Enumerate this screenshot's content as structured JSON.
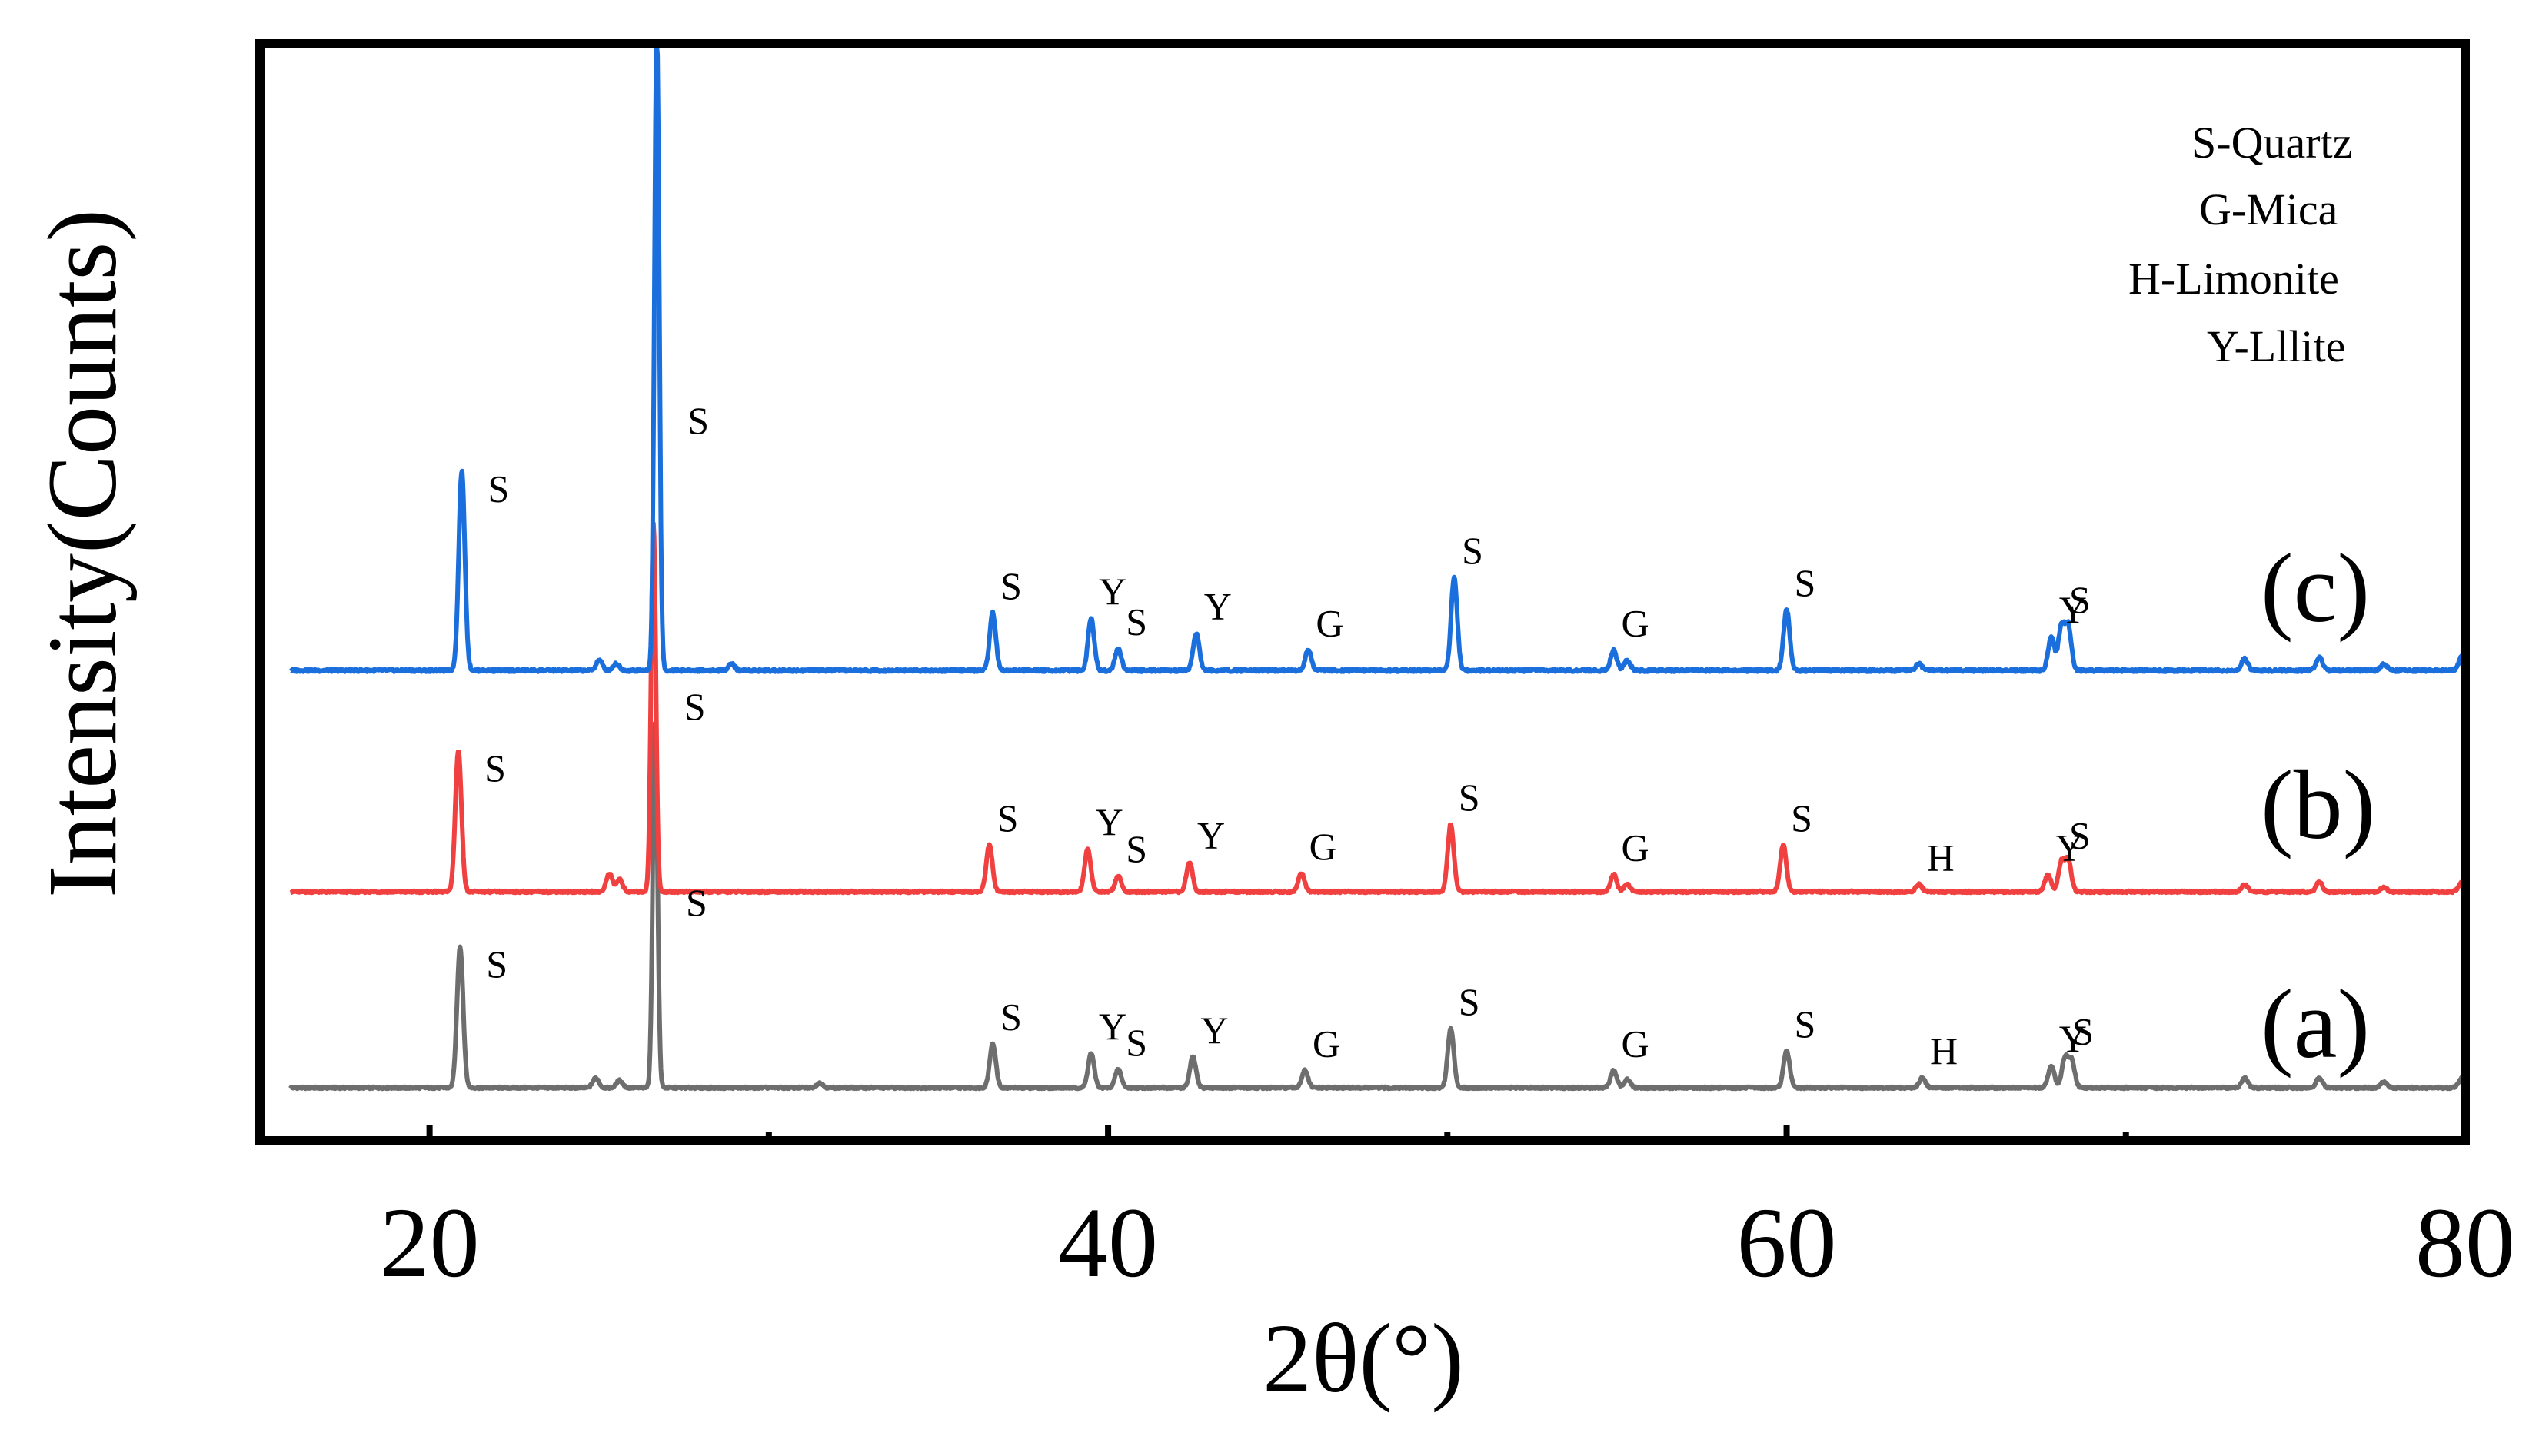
{
  "chart_data": {
    "type": "line",
    "title": "",
    "xlabel": "2θ(°)",
    "ylabel": "Intensity(Counts)",
    "xlim": [
      15,
      80
    ],
    "xticks": [
      20,
      40,
      60,
      80
    ],
    "xticks_minor": [
      30,
      50,
      70
    ],
    "yticks": [],
    "grid": false,
    "legend": {
      "placement": "top-right",
      "entries": [
        "S-Quartz",
        "G-Mica",
        "H-Limonite",
        "Y-Lllite"
      ]
    },
    "series": [
      {
        "name": "(a)",
        "color": "#6e6e6e",
        "baseline": 0,
        "peaks": [
          {
            "x": 20.9,
            "y": 115,
            "label": "S"
          },
          {
            "x": 24.9,
            "y": 8
          },
          {
            "x": 25.6,
            "y": 6
          },
          {
            "x": 26.65,
            "y": 300,
            "label": "S"
          },
          {
            "x": 31.5,
            "y": 4
          },
          {
            "x": 36.6,
            "y": 36,
            "label": "S"
          },
          {
            "x": 39.5,
            "y": 28,
            "label": "Y"
          },
          {
            "x": 40.3,
            "y": 15,
            "label": "S"
          },
          {
            "x": 42.5,
            "y": 25,
            "label": "Y"
          },
          {
            "x": 45.8,
            "y": 14,
            "label": "G"
          },
          {
            "x": 50.1,
            "y": 48,
            "label": "S"
          },
          {
            "x": 54.9,
            "y": 14,
            "label": "G"
          },
          {
            "x": 55.3,
            "y": 7
          },
          {
            "x": 60.0,
            "y": 30,
            "label": "S"
          },
          {
            "x": 64.0,
            "y": 8,
            "label": "H"
          },
          {
            "x": 67.8,
            "y": 18,
            "label": "Y"
          },
          {
            "x": 68.2,
            "y": 24,
            "label": "S"
          },
          {
            "x": 68.4,
            "y": 22
          },
          {
            "x": 73.5,
            "y": 8
          },
          {
            "x": 75.7,
            "y": 8
          },
          {
            "x": 77.6,
            "y": 5
          },
          {
            "x": 79.9,
            "y": 8
          }
        ]
      },
      {
        "name": "(b)",
        "color": "#f04040",
        "baseline": 0,
        "peaks": [
          {
            "x": 20.85,
            "y": 115,
            "label": "S"
          },
          {
            "x": 25.3,
            "y": 15
          },
          {
            "x": 25.6,
            "y": 10
          },
          {
            "x": 26.6,
            "y": 300,
            "label": "S"
          },
          {
            "x": 36.5,
            "y": 38,
            "label": "S"
          },
          {
            "x": 39.4,
            "y": 35,
            "label": "Y"
          },
          {
            "x": 40.3,
            "y": 13,
            "label": "S"
          },
          {
            "x": 42.4,
            "y": 24,
            "label": "Y"
          },
          {
            "x": 45.7,
            "y": 15,
            "label": "G"
          },
          {
            "x": 50.1,
            "y": 55,
            "label": "S"
          },
          {
            "x": 54.9,
            "y": 14,
            "label": "G"
          },
          {
            "x": 55.3,
            "y": 6
          },
          {
            "x": 59.9,
            "y": 38,
            "label": "S"
          },
          {
            "x": 63.9,
            "y": 6,
            "label": "H"
          },
          {
            "x": 67.7,
            "y": 14,
            "label": "Y"
          },
          {
            "x": 68.1,
            "y": 24,
            "label": "S"
          },
          {
            "x": 68.3,
            "y": 25
          },
          {
            "x": 73.5,
            "y": 6
          },
          {
            "x": 75.7,
            "y": 8
          },
          {
            "x": 77.6,
            "y": 4
          },
          {
            "x": 79.9,
            "y": 8
          }
        ]
      },
      {
        "name": "(c)",
        "color": "#1a6fdc",
        "baseline": 0,
        "peaks": [
          {
            "x": 20.95,
            "y": 118,
            "label": "S"
          },
          {
            "x": 25.0,
            "y": 6
          },
          {
            "x": 25.5,
            "y": 4
          },
          {
            "x": 26.7,
            "y": 380,
            "label": "S"
          },
          {
            "x": 28.9,
            "y": 4
          },
          {
            "x": 36.6,
            "y": 34,
            "label": "S"
          },
          {
            "x": 39.5,
            "y": 31,
            "label": "Y"
          },
          {
            "x": 40.3,
            "y": 13,
            "label": "S"
          },
          {
            "x": 42.6,
            "y": 22,
            "label": "Y"
          },
          {
            "x": 45.9,
            "y": 12,
            "label": "G"
          },
          {
            "x": 50.2,
            "y": 55,
            "label": "S"
          },
          {
            "x": 54.9,
            "y": 12,
            "label": "G"
          },
          {
            "x": 55.3,
            "y": 6
          },
          {
            "x": 60.0,
            "y": 36,
            "label": "S"
          },
          {
            "x": 63.9,
            "y": 4
          },
          {
            "x": 67.8,
            "y": 20,
            "label": "Y"
          },
          {
            "x": 68.1,
            "y": 26,
            "label": "S"
          },
          {
            "x": 68.3,
            "y": 26
          },
          {
            "x": 73.5,
            "y": 7
          },
          {
            "x": 75.7,
            "y": 8
          },
          {
            "x": 77.6,
            "y": 4
          },
          {
            "x": 79.9,
            "y": 8
          }
        ]
      }
    ]
  }
}
